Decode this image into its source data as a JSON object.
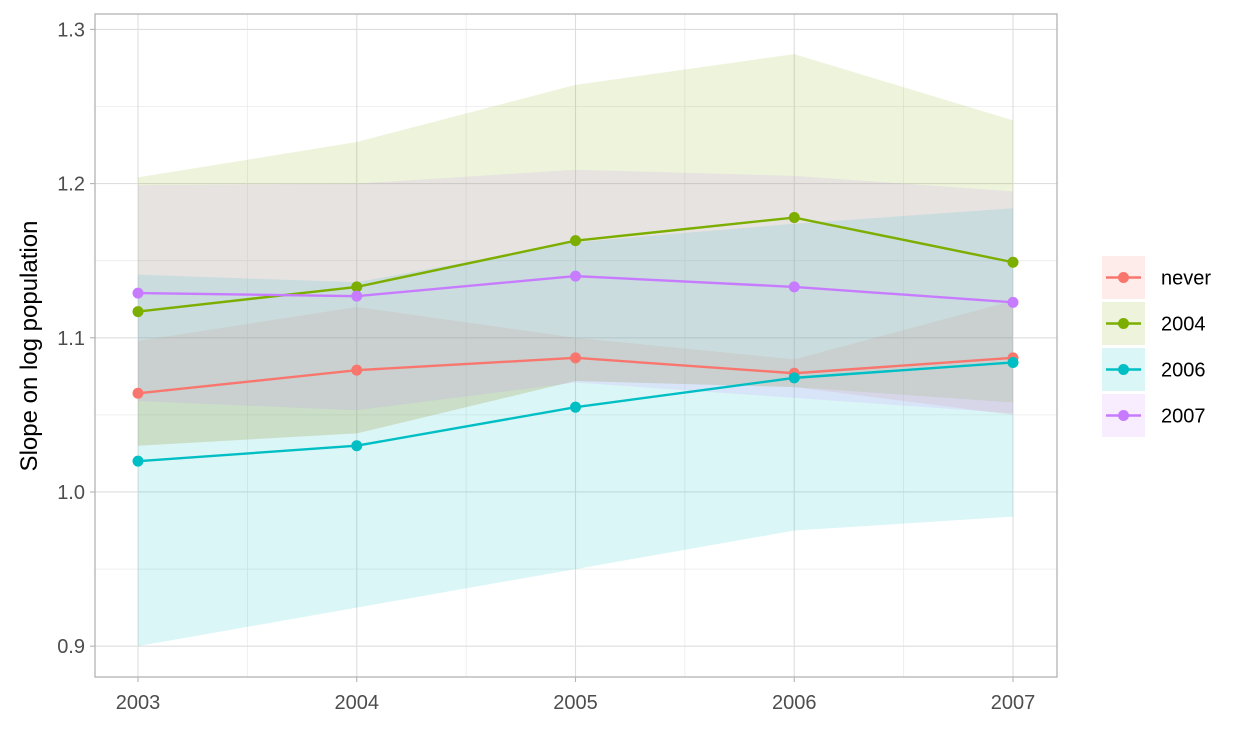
{
  "chart_data": {
    "type": "line",
    "title": "",
    "xlabel": "",
    "ylabel": "Slope on log population",
    "x": [
      "2003",
      "2004",
      "2005",
      "2006",
      "2007"
    ],
    "ylim": [
      0.88,
      1.31
    ],
    "y_ticks": [
      "0.9",
      "1.0",
      "1.1",
      "1.2",
      "1.3"
    ],
    "grid": true,
    "legend_position": "right",
    "series": [
      {
        "name": "never",
        "color": "#F8766D",
        "values": [
          1.064,
          1.079,
          1.087,
          1.077,
          1.087
        ],
        "lower": [
          1.03,
          1.038,
          1.072,
          1.068,
          1.05
        ],
        "upper": [
          1.098,
          1.12,
          1.1,
          1.086,
          1.124
        ]
      },
      {
        "name": "2004",
        "color": "#7CAE00",
        "values": [
          1.117,
          1.133,
          1.163,
          1.178,
          1.149
        ],
        "lower": [
          1.03,
          1.038,
          1.072,
          1.068,
          1.058
        ],
        "upper": [
          1.204,
          1.227,
          1.264,
          1.284,
          1.241
        ]
      },
      {
        "name": "2006",
        "color": "#00BFC4",
        "values": [
          1.02,
          1.03,
          1.055,
          1.074,
          1.084
        ],
        "lower": [
          0.9,
          0.925,
          0.95,
          0.975,
          0.984
        ],
        "upper": [
          1.141,
          1.136,
          1.162,
          1.174,
          1.184
        ]
      },
      {
        "name": "2007",
        "color": "#C77CFF",
        "values": [
          1.129,
          1.127,
          1.14,
          1.133,
          1.123
        ],
        "lower": [
          1.059,
          1.053,
          1.071,
          1.061,
          1.051
        ],
        "upper": [
          1.199,
          1.2,
          1.209,
          1.205,
          1.195
        ]
      }
    ]
  }
}
